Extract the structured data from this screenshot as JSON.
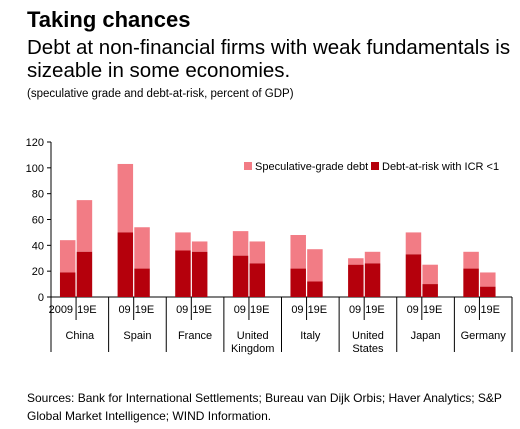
{
  "header": {
    "title": "Taking chances",
    "subtitle": "Debt at non-financial firms with weak fundamentals is sizeable in some economies.",
    "note": "(speculative grade and debt-at-risk, percent of GDP)"
  },
  "footer": {
    "source": "Sources: Bank for International Settlements; Bureau van Dijk Orbis; Haver Analytics; S&P Global Market Intelligence; WIND Information."
  },
  "chart_data": {
    "type": "bar",
    "stacked": true,
    "ylim": [
      0,
      120
    ],
    "yticks": [
      0,
      20,
      40,
      60,
      80,
      100,
      120
    ],
    "legend_position": "top-right",
    "grid": false,
    "colors": {
      "speculative": "#F27C85",
      "debt_at_risk": "#B5000C"
    },
    "legend": [
      {
        "key": "speculative",
        "label": "Speculative-grade debt"
      },
      {
        "key": "debt_at_risk",
        "label": "Debt-at-risk with ICR <1"
      }
    ],
    "groups": [
      {
        "name": "China",
        "bars": [
          {
            "label": "2009",
            "total": 44,
            "debt_at_risk": 19
          },
          {
            "label": "19E",
            "total": 75,
            "debt_at_risk": 35
          }
        ]
      },
      {
        "name": "Spain",
        "bars": [
          {
            "label": "09",
            "total": 103,
            "debt_at_risk": 50
          },
          {
            "label": "19E",
            "total": 54,
            "debt_at_risk": 22
          }
        ]
      },
      {
        "name": "France",
        "bars": [
          {
            "label": "09",
            "total": 50,
            "debt_at_risk": 36
          },
          {
            "label": "19E",
            "total": 43,
            "debt_at_risk": 35
          }
        ]
      },
      {
        "name": "United Kingdom",
        "bars": [
          {
            "label": "09",
            "total": 51,
            "debt_at_risk": 32
          },
          {
            "label": "19E",
            "total": 43,
            "debt_at_risk": 26
          }
        ]
      },
      {
        "name": "Italy",
        "bars": [
          {
            "label": "09",
            "total": 48,
            "debt_at_risk": 22
          },
          {
            "label": "19E",
            "total": 37,
            "debt_at_risk": 12
          }
        ]
      },
      {
        "name": "United States",
        "bars": [
          {
            "label": "09",
            "total": 30,
            "debt_at_risk": 25
          },
          {
            "label": "19E",
            "total": 35,
            "debt_at_risk": 26
          }
        ]
      },
      {
        "name": "Japan",
        "bars": [
          {
            "label": "09",
            "total": 50,
            "debt_at_risk": 33
          },
          {
            "label": "19E",
            "total": 25,
            "debt_at_risk": 10
          }
        ]
      },
      {
        "name": "Germany",
        "bars": [
          {
            "label": "09",
            "total": 35,
            "debt_at_risk": 22
          },
          {
            "label": "19E",
            "total": 19,
            "debt_at_risk": 8
          }
        ]
      }
    ]
  }
}
